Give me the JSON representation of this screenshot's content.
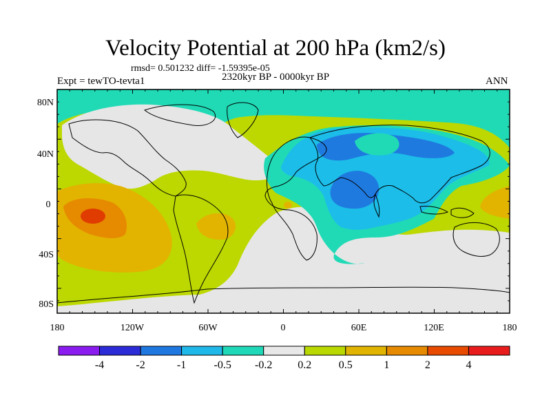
{
  "header": {
    "title": "Velocity Potential at 200 hPa (km2/s)",
    "stats": "rmsd= 0.501232  diff= -1.59395e-05",
    "experiment": "Expt = tewTO-tevta1",
    "period": "2320kyr BP - 0000kyr BP",
    "season": "ANN"
  },
  "axes": {
    "lat_labels": [
      "80N",
      "40N",
      "0",
      "40S",
      "80S"
    ],
    "lon_labels": [
      "180",
      "120W",
      "60W",
      "0",
      "60E",
      "120E",
      "180"
    ]
  },
  "colorbar": {
    "colors": [
      "#8a1cf0",
      "#2b2bd8",
      "#1f77e0",
      "#1fb8e8",
      "#1fd8b8",
      "#e8e8e8",
      "#b8d800",
      "#e0b400",
      "#e68a00",
      "#e84a00",
      "#e81c1c"
    ],
    "labels": [
      "-4",
      "-2",
      "-1",
      "-0.5",
      "-0.2",
      "0.2",
      "0.5",
      "1",
      "2",
      "4"
    ]
  },
  "palette": {
    "gray": "#e6e6e6",
    "teal": "#20dab6",
    "lightblue": "#1cbde8",
    "blue": "#1f7ae0",
    "green": "#bcd800",
    "yellow": "#e2b400",
    "orange": "#e68a00",
    "red": "#e03c00"
  }
}
